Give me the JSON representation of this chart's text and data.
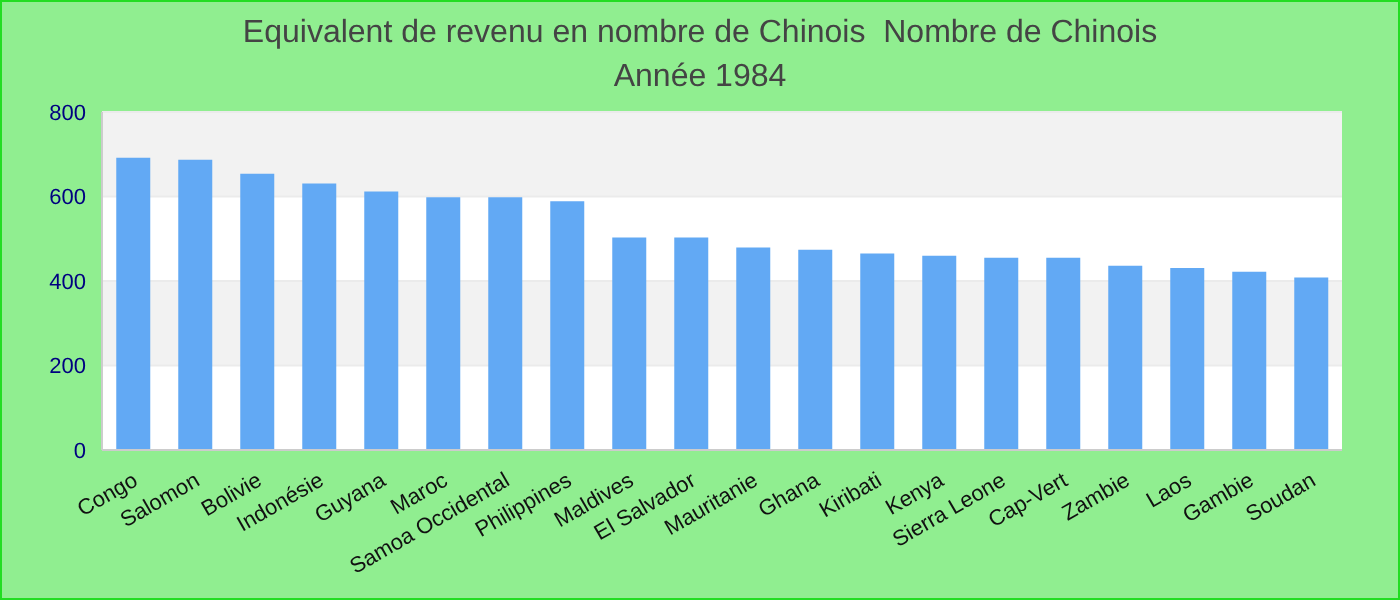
{
  "chart_data": {
    "type": "bar",
    "title": "Equivalent de revenu en nombre de Chinois  Nombre de Chinois",
    "subtitle": "Année 1984",
    "categories": [
      "Congo",
      "Salomon",
      "Bolivie",
      "Indonésie",
      "Guyana",
      "Maroc",
      "Samoa Occidental",
      "Philippines",
      "Maldives",
      "El Salvador",
      "Mauritanie",
      "Ghana",
      "Kiribati",
      "Kenya",
      "Sierra Leone",
      "Cap-Vert",
      "Zambie",
      "Laos",
      "Gambie",
      "Soudan"
    ],
    "values": [
      692,
      687,
      654,
      631,
      612,
      598,
      598,
      589,
      503,
      503,
      479,
      474,
      465,
      460,
      455,
      455,
      436,
      431,
      422,
      408
    ],
    "color": "#62a9f4",
    "ylim": [
      0,
      800
    ],
    "yticks": [
      0,
      200,
      400,
      600,
      800
    ],
    "grid": "y"
  }
}
